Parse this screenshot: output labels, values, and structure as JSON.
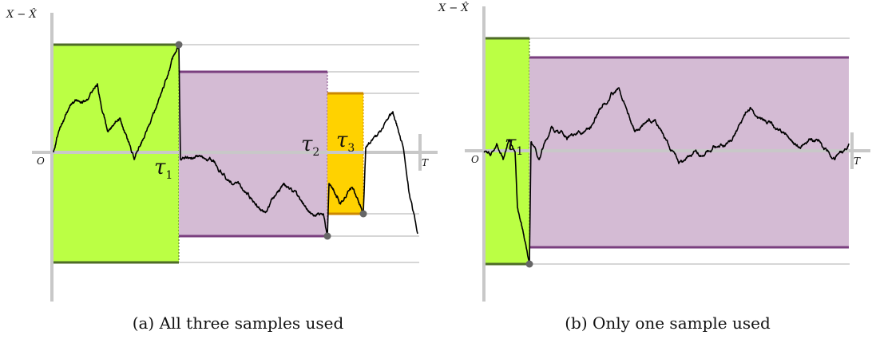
{
  "colors": {
    "green": "#bbff44",
    "green_border": "#4e6b27",
    "purple": "#d4bbd4",
    "purple_border": "#7a3f7f",
    "yellow": "#ffd200",
    "yellow_border": "#cc8800",
    "axis": "#c8c8c8",
    "guide": "#c8c8c8",
    "path": "#000000",
    "dot": "#666666"
  },
  "panel_a": {
    "ylabel": "X − X̂",
    "origin": "O",
    "end": "T",
    "tau1": "τ",
    "tau1_sub": "1",
    "tau2": "τ",
    "tau2_sub": "2",
    "tau3": "τ",
    "tau3_sub": "3",
    "caption": "(a) All three samples used"
  },
  "panel_b": {
    "ylabel": "X − X̂",
    "origin": "O",
    "end": "T",
    "tau1": "τ",
    "tau1_sub": "1",
    "caption": "(b) Only one sample used"
  }
}
